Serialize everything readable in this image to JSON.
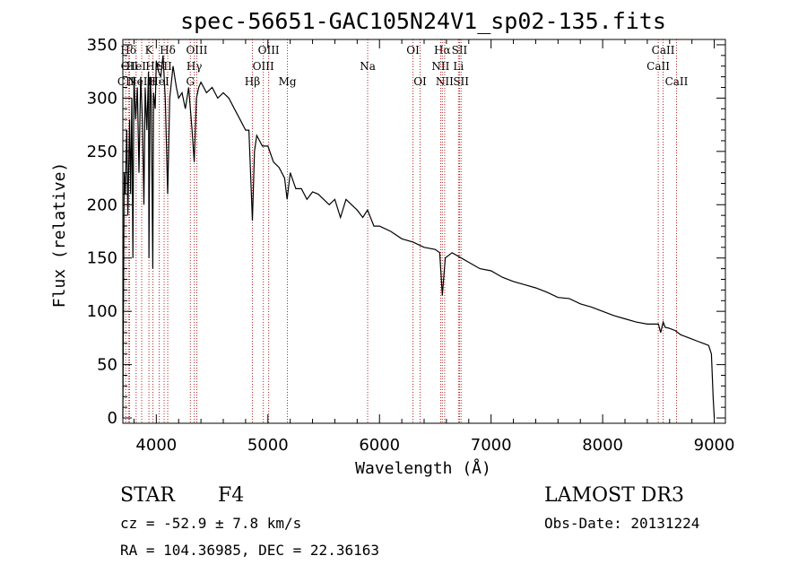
{
  "chart_data": {
    "type": "line",
    "title": "spec-56651-GAC105N24V1_sp02-135.fits",
    "xlabel": "Wavelength (Å)",
    "ylabel": "Flux (relative)",
    "xlim": [
      3700,
      9100
    ],
    "ylim": [
      -5,
      355
    ],
    "xticks": [
      4000,
      5000,
      6000,
      7000,
      8000,
      9000
    ],
    "yticks": [
      0,
      50,
      100,
      150,
      200,
      250,
      300,
      350
    ],
    "xtick_labels": [
      "4000",
      "5000",
      "6000",
      "7000",
      "8000",
      "9000"
    ],
    "ytick_labels": [
      "0",
      "50",
      "100",
      "150",
      "200",
      "250",
      "300",
      "350"
    ],
    "series": [
      {
        "name": "spectrum",
        "x": [
          3700,
          3712,
          3722,
          3735,
          3745,
          3760,
          3770,
          3780,
          3790,
          3800,
          3815,
          3830,
          3845,
          3860,
          3875,
          3889,
          3900,
          3915,
          3930,
          3934,
          3945,
          3955,
          3968,
          3975,
          3990,
          4000,
          4020,
          4040,
          4060,
          4080,
          4102,
          4120,
          4150,
          4180,
          4200,
          4230,
          4260,
          4290,
          4320,
          4340,
          4360,
          4380,
          4400,
          4450,
          4500,
          4550,
          4600,
          4650,
          4700,
          4750,
          4800,
          4830,
          4861,
          4880,
          4900,
          4950,
          5000,
          5050,
          5100,
          5150,
          5172,
          5200,
          5250,
          5300,
          5350,
          5400,
          5450,
          5500,
          5550,
          5600,
          5650,
          5700,
          5750,
          5800,
          5850,
          5893,
          5950,
          6000,
          6100,
          6200,
          6300,
          6400,
          6500,
          6540,
          6563,
          6590,
          6650,
          6700,
          6800,
          6900,
          7000,
          7100,
          7200,
          7300,
          7400,
          7500,
          7600,
          7700,
          7800,
          7900,
          8000,
          8100,
          8200,
          8300,
          8400,
          8500,
          8520,
          8542,
          8560,
          8600,
          8650,
          8700,
          8750,
          8800,
          8850,
          8900,
          8950,
          8975,
          8990,
          9000
        ],
        "values": [
          0,
          230,
          210,
          270,
          190,
          280,
          210,
          300,
          150,
          320,
          280,
          310,
          230,
          320,
          280,
          200,
          310,
          270,
          325,
          150,
          320,
          300,
          140,
          305,
          290,
          335,
          325,
          320,
          340,
          300,
          210,
          300,
          330,
          310,
          300,
          305,
          290,
          310,
          270,
          240,
          300,
          310,
          315,
          305,
          310,
          300,
          305,
          300,
          290,
          280,
          270,
          270,
          185,
          250,
          265,
          255,
          255,
          240,
          235,
          225,
          205,
          230,
          215,
          215,
          205,
          212,
          210,
          205,
          200,
          205,
          188,
          205,
          200,
          195,
          188,
          195,
          180,
          180,
          175,
          168,
          165,
          160,
          158,
          155,
          115,
          150,
          155,
          152,
          146,
          140,
          138,
          132,
          128,
          125,
          122,
          118,
          113,
          112,
          107,
          104,
          100,
          96,
          93,
          90,
          88,
          88,
          80,
          90,
          85,
          84,
          82,
          78,
          76,
          74,
          72,
          70,
          68,
          60,
          20,
          0
        ]
      }
    ],
    "lines": [
      {
        "name": "CII",
        "w": 3726,
        "row": 3
      },
      {
        "name": "Hδ",
        "w": 3750,
        "row": 1
      },
      {
        "name": "OII",
        "w": 3760,
        "row": 2
      },
      {
        "name": "HeI",
        "w": 3819,
        "row": 2
      },
      {
        "name": "K",
        "w": 3934,
        "row": 1
      },
      {
        "name": "Hε",
        "w": 3970,
        "row": 2
      },
      {
        "name": "NeIII",
        "w": 3869,
        "row": 3
      },
      {
        "name": "Hδ",
        "w": 4102,
        "row": 1
      },
      {
        "name": "SII",
        "w": 4070,
        "row": 2
      },
      {
        "name": "HeI",
        "w": 4026,
        "row": 3
      },
      {
        "name": "OIII",
        "w": 4363,
        "row": 1
      },
      {
        "name": "Hγ",
        "w": 4340,
        "row": 2
      },
      {
        "name": "G",
        "w": 4305,
        "row": 3
      },
      {
        "name": "Hβ",
        "w": 4861,
        "row": 3
      },
      {
        "name": "OIII",
        "w": 4959,
        "row": 2
      },
      {
        "name": "OIII",
        "w": 5007,
        "row": 1
      },
      {
        "name": "Mg",
        "w": 5175,
        "row": 3
      },
      {
        "name": "Na",
        "w": 5894,
        "row": 2
      },
      {
        "name": "OI",
        "w": 6300,
        "row": 1
      },
      {
        "name": "OI",
        "w": 6364,
        "row": 3
      },
      {
        "name": "Hα",
        "w": 6563,
        "row": 1
      },
      {
        "name": "NII",
        "w": 6548,
        "row": 2
      },
      {
        "name": "NII",
        "w": 6584,
        "row": 3
      },
      {
        "name": "SII",
        "w": 6717,
        "row": 1
      },
      {
        "name": "Li",
        "w": 6708,
        "row": 2
      },
      {
        "name": "SII",
        "w": 6731,
        "row": 3
      },
      {
        "name": "CaII",
        "w": 8542,
        "row": 1
      },
      {
        "name": "CaII",
        "w": 8498,
        "row": 2
      },
      {
        "name": "CaII",
        "w": 8662,
        "row": 3
      }
    ],
    "line_color": "#b22222"
  },
  "info": {
    "class_label": "STAR",
    "subclass": "F4",
    "survey": "LAMOST DR3",
    "cz": "cz = -52.9 ± 7.8 km/s",
    "obs_date": "Obs-Date: 20131224",
    "coords": "RA = 104.36985, DEC =  22.36163"
  }
}
